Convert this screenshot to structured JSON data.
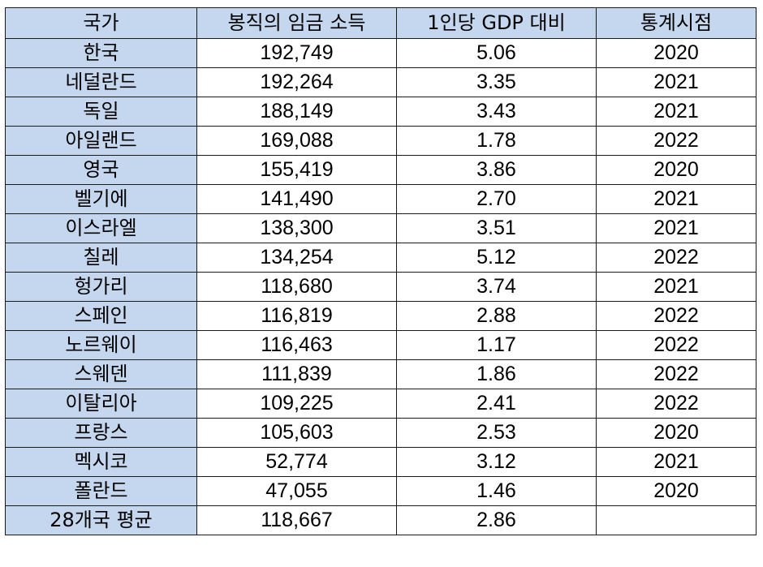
{
  "table": {
    "headers": [
      "국가",
      "봉직의 임금 소득",
      "1인당 GDP 대비",
      "통계시점"
    ],
    "rows": [
      [
        "한국",
        "192,749",
        "5.06",
        "2020"
      ],
      [
        "네덜란드",
        "192,264",
        "3.35",
        "2021"
      ],
      [
        "독일",
        "188,149",
        "3.43",
        "2021"
      ],
      [
        "아일랜드",
        "169,088",
        "1.78",
        "2022"
      ],
      [
        "영국",
        "155,419",
        "3.86",
        "2020"
      ],
      [
        "벨기에",
        "141,490",
        "2.70",
        "2021"
      ],
      [
        "이스라엘",
        "138,300",
        "3.51",
        "2021"
      ],
      [
        "칠레",
        "134,254",
        "5.12",
        "2022"
      ],
      [
        "헝가리",
        "118,680",
        "3.74",
        "2021"
      ],
      [
        "스페인",
        "116,819",
        "2.88",
        "2022"
      ],
      [
        "노르웨이",
        "116,463",
        "1.17",
        "2022"
      ],
      [
        "스웨덴",
        "111,839",
        "1.86",
        "2022"
      ],
      [
        "이탈리아",
        "109,225",
        "2.41",
        "2022"
      ],
      [
        "프랑스",
        "105,603",
        "2.53",
        "2020"
      ],
      [
        "멕시코",
        "52,774",
        "3.12",
        "2021"
      ],
      [
        "폴란드",
        "47,055",
        "1.46",
        "2020"
      ],
      [
        "28개국 평균",
        "118,667",
        "2.86",
        ""
      ]
    ]
  },
  "colors": {
    "header_fill": "#c5d7ee",
    "first_column_fill": "#c5d7ee",
    "border": "#1a1a1a"
  }
}
